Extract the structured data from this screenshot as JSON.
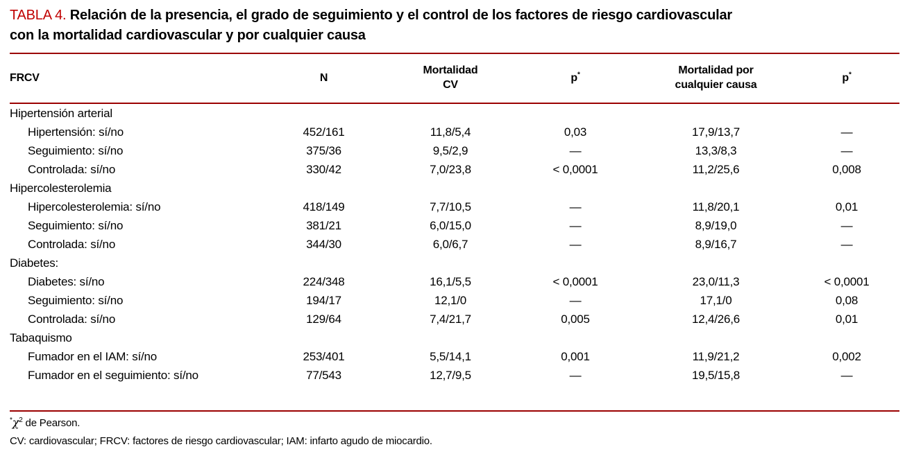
{
  "title": {
    "tag": "TABLA 4.",
    "line1": "Relación de la presencia, el grado de seguimiento y el control de los factores de riesgo cardiovascular",
    "line2": "con la mortalidad cardiovascular y por cualquier causa"
  },
  "colors": {
    "accent_red": "#c00000",
    "rule_red": "#9b0000",
    "text": "#000000",
    "background": "#ffffff"
  },
  "table": {
    "header": [
      {
        "lines": [
          "FRCV"
        ]
      },
      {
        "lines": [
          "N"
        ]
      },
      {
        "lines": [
          "Mortalidad",
          "CV"
        ]
      },
      {
        "base": "p",
        "sup": "*"
      },
      {
        "lines": [
          "Mortalidad por",
          "cualquier causa"
        ]
      },
      {
        "base": "p",
        "sup": "*"
      }
    ],
    "rows": [
      {
        "type": "group",
        "label": "Hipertensión arterial"
      },
      {
        "type": "data",
        "label": "Hipertensión: sí/no",
        "n": "452/161",
        "mort_cv": "11,8/5,4",
        "p1": "0,03",
        "mort_all": "17,9/13,7",
        "p2": "—"
      },
      {
        "type": "data",
        "label": "Seguimiento: sí/no",
        "n": "375/36",
        "mort_cv": "9,5/2,9",
        "p1": "—",
        "mort_all": "13,3/8,3",
        "p2": "—"
      },
      {
        "type": "data",
        "label": "Controlada: sí/no",
        "n": "330/42",
        "mort_cv": "7,0/23,8",
        "p1": "< 0,0001",
        "mort_all": "11,2/25,6",
        "p2": "0,008"
      },
      {
        "type": "group",
        "label": "Hipercolesterolemia"
      },
      {
        "type": "data",
        "label": "Hipercolesterolemia: sí/no",
        "n": "418/149",
        "mort_cv": "7,7/10,5",
        "p1": "—",
        "mort_all": "11,8/20,1",
        "p2": "0,01"
      },
      {
        "type": "data",
        "label": "Seguimiento: sí/no",
        "n": "381/21",
        "mort_cv": "6,0/15,0",
        "p1": "—",
        "mort_all": "8,9/19,0",
        "p2": "—"
      },
      {
        "type": "data",
        "label": "Controlada: sí/no",
        "n": "344/30",
        "mort_cv": "6,0/6,7",
        "p1": "—",
        "mort_all": "8,9/16,7",
        "p2": "—"
      },
      {
        "type": "group",
        "label": "Diabetes:"
      },
      {
        "type": "data",
        "label": "Diabetes: sí/no",
        "n": "224/348",
        "mort_cv": "16,1/5,5",
        "p1": "< 0,0001",
        "mort_all": "23,0/11,3",
        "p2": "< 0,0001"
      },
      {
        "type": "data",
        "label": "Seguimiento: sí/no",
        "n": "194/17",
        "mort_cv": "12,1/0",
        "p1": "—",
        "mort_all": "17,1/0",
        "p2": "0,08"
      },
      {
        "type": "data",
        "label": "Controlada: sí/no",
        "n": "129/64",
        "mort_cv": "7,4/21,7",
        "p1": "0,005",
        "mort_all": "12,4/26,6",
        "p2": "0,01"
      },
      {
        "type": "group",
        "label": "Tabaquismo"
      },
      {
        "type": "data",
        "label": "Fumador en el IAM: sí/no",
        "n": "253/401",
        "mort_cv": "5,5/14,1",
        "p1": "0,001",
        "mort_all": "11,9/21,2",
        "p2": "0,002"
      },
      {
        "type": "data",
        "label": "Fumador en el seguimiento: sí/no",
        "n": "77/543",
        "mort_cv": "12,7/9,5",
        "p1": "—",
        "mort_all": "19,5/15,8",
        "p2": "—"
      }
    ]
  },
  "footnotes": {
    "pearson": {
      "star": "*",
      "chi": "χ",
      "exp": "2",
      "text": " de Pearson."
    },
    "abbreviations": "CV: cardiovascular; FRCV: factores de riesgo cardiovascular; IAM: infarto agudo de miocardio."
  }
}
